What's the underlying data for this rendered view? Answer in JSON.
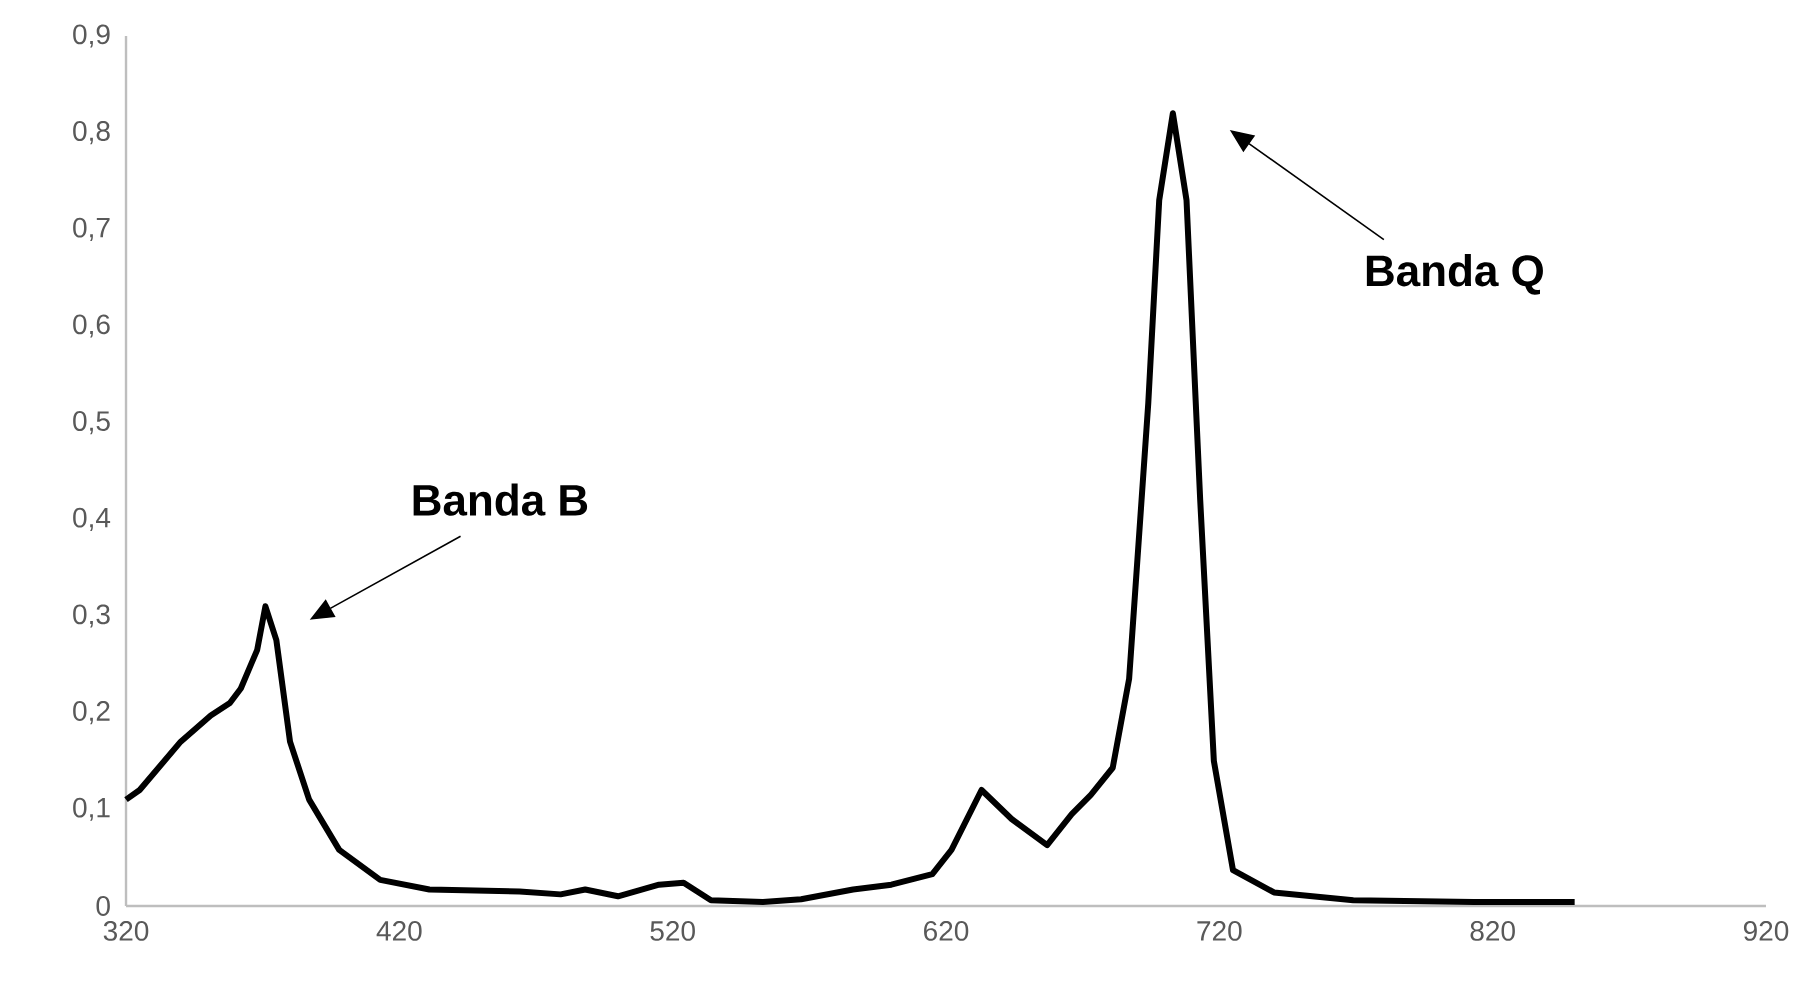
{
  "chart_data": {
    "type": "line",
    "x": [
      320,
      325,
      340,
      351,
      358,
      362,
      368,
      371,
      375,
      380,
      387,
      398,
      413,
      431,
      464,
      479,
      488,
      500,
      515,
      524,
      534,
      553,
      567,
      586,
      600,
      615,
      622,
      633,
      644,
      657,
      666,
      673,
      681,
      687,
      694,
      698,
      703,
      708,
      713,
      718,
      725,
      740,
      769,
      813,
      850
    ],
    "series": [
      {
        "color": "#000000",
        "values": [
          0.11,
          0.12,
          0.17,
          0.197,
          0.21,
          0.225,
          0.265,
          0.31,
          0.275,
          0.17,
          0.11,
          0.058,
          0.027,
          0.017,
          0.015,
          0.012,
          0.017,
          0.01,
          0.022,
          0.024,
          0.006,
          0.004,
          0.007,
          0.017,
          0.022,
          0.033,
          0.058,
          0.12,
          0.09,
          0.063,
          0.095,
          0.115,
          0.143,
          0.235,
          0.52,
          0.73,
          0.82,
          0.73,
          0.42,
          0.15,
          0.037,
          0.014,
          0.006,
          0.004,
          0.004
        ]
      }
    ],
    "xlim": [
      320,
      920
    ],
    "xticks": [
      320,
      420,
      520,
      620,
      720,
      820,
      920
    ],
    "ylim": [
      0,
      0.9
    ],
    "yticks": [
      0,
      {
        "value": 0.1,
        "label": "0,1"
      },
      {
        "value": 0.2,
        "label": "0,2"
      },
      {
        "value": 0.3,
        "label": "0,3"
      },
      {
        "value": 0.4,
        "label": "0,4"
      },
      {
        "value": 0.5,
        "label": "0,5"
      },
      {
        "value": 0.6,
        "label": "0,6"
      },
      {
        "value": 0.7,
        "label": "0,7"
      },
      {
        "value": 0.8,
        "label": "0,8"
      },
      {
        "value": 0.9,
        "label": "0,9"
      }
    ],
    "annotations": [
      "Banda B",
      "Banda Q"
    ]
  }
}
